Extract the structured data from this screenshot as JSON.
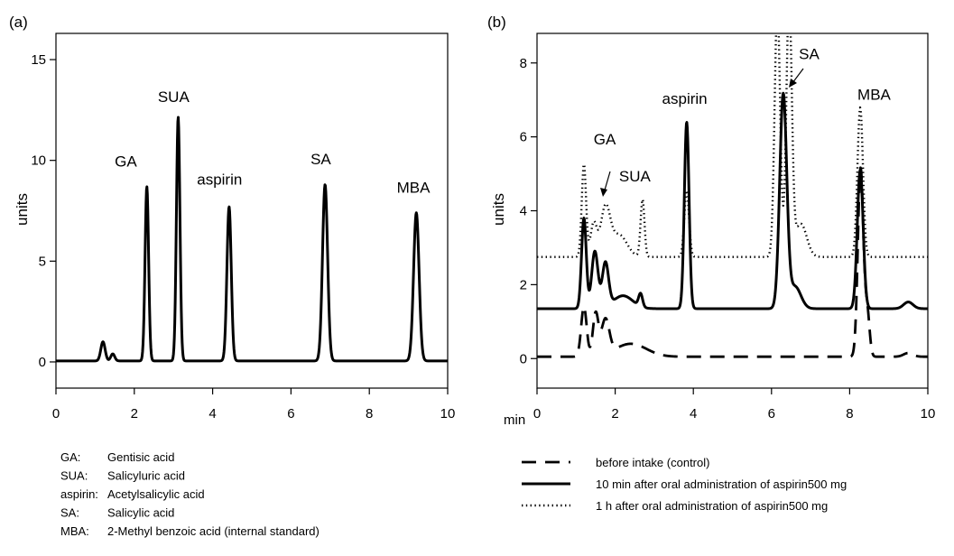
{
  "chart_data": [
    {
      "panel": "(a)",
      "type": "line",
      "ylabel": "units",
      "xlim": [
        0,
        10
      ],
      "ylim": [
        -1.3,
        16.3
      ],
      "xticks": [
        0,
        2,
        4,
        6,
        8,
        10
      ],
      "yticks": [
        0,
        5,
        10,
        15
      ],
      "peak_labels": [
        {
          "text": "GA",
          "x": 1.5,
          "y": 9.7
        },
        {
          "text": "SUA",
          "x": 2.6,
          "y": 12.9
        },
        {
          "text": "aspirin",
          "x": 3.6,
          "y": 8.8
        },
        {
          "text": "SA",
          "x": 6.5,
          "y": 9.8
        },
        {
          "text": "MBA",
          "x": 8.7,
          "y": 8.4
        }
      ],
      "series": [
        {
          "style": "solid",
          "baseline": 0.05,
          "peaks": [
            {
              "x": 1.2,
              "h": 0.95,
              "w": 0.055
            },
            {
              "x": 1.45,
              "h": 0.35,
              "w": 0.05
            },
            {
              "x": 2.32,
              "h": 8.65,
              "w": 0.045
            },
            {
              "x": 3.12,
              "h": 12.1,
              "w": 0.045
            },
            {
              "x": 4.42,
              "h": 7.65,
              "w": 0.055
            },
            {
              "x": 6.87,
              "h": 8.75,
              "w": 0.065
            },
            {
              "x": 9.2,
              "h": 7.35,
              "w": 0.07
            }
          ]
        }
      ],
      "legend": [
        {
          "abbr": "GA:",
          "name": "Gentisic acid"
        },
        {
          "abbr": "SUA:",
          "name": "Salicyluric acid"
        },
        {
          "abbr": "aspirin:",
          "name": "Acetylsalicylic acid"
        },
        {
          "abbr": "SA:",
          "name": "Salicylic acid"
        },
        {
          "abbr": "MBA:",
          "name": "2-Methyl benzoic acid (internal standard)"
        }
      ]
    },
    {
      "panel": "(b)",
      "type": "line",
      "ylabel": "units",
      "xunit": "min",
      "xlim": [
        0,
        10
      ],
      "ylim": [
        -0.8,
        8.8
      ],
      "xticks": [
        0,
        2,
        4,
        6,
        8,
        10
      ],
      "yticks": [
        0,
        2,
        4,
        6,
        8
      ],
      "peak_labels": [
        {
          "text": "GA",
          "x": 1.45,
          "y": 5.8
        },
        {
          "text": "SUA",
          "x": 2.1,
          "y": 4.8
        },
        {
          "text": "aspirin",
          "x": 3.2,
          "y": 6.9
        },
        {
          "text": "SA",
          "x": 6.7,
          "y": 8.1
        },
        {
          "text": "MBA",
          "x": 8.2,
          "y": 7.0
        }
      ],
      "series": [
        {
          "name": "before intake (control)",
          "style": "dashed",
          "baseline": 0.05,
          "peaks": [
            {
              "x": 1.2,
              "h": 1.35,
              "w": 0.07
            },
            {
              "x": 1.5,
              "h": 1.15,
              "w": 0.07
            },
            {
              "x": 1.75,
              "h": 0.95,
              "w": 0.1
            },
            {
              "x": 2.4,
              "h": 0.35,
              "w": 0.4
            },
            {
              "x": 8.28,
              "h": 5.1,
              "w": 0.07
            },
            {
              "x": 8.45,
              "h": 1.2,
              "w": 0.06
            },
            {
              "x": 9.5,
              "h": 0.1,
              "w": 0.12
            }
          ]
        },
        {
          "name": "10 min after oral administration of aspirin500 mg",
          "style": "solid",
          "baseline": 1.35,
          "peaks": [
            {
              "x": 1.2,
              "h": 2.45,
              "w": 0.06
            },
            {
              "x": 1.48,
              "h": 1.55,
              "w": 0.08
            },
            {
              "x": 1.75,
              "h": 1.2,
              "w": 0.08
            },
            {
              "x": 2.2,
              "h": 0.35,
              "w": 0.25
            },
            {
              "x": 2.65,
              "h": 0.35,
              "w": 0.05
            },
            {
              "x": 3.83,
              "h": 5.05,
              "w": 0.06
            },
            {
              "x": 6.3,
              "h": 5.75,
              "w": 0.09
            },
            {
              "x": 6.6,
              "h": 0.6,
              "w": 0.15
            },
            {
              "x": 8.27,
              "h": 3.75,
              "w": 0.075
            },
            {
              "x": 9.5,
              "h": 0.18,
              "w": 0.12
            }
          ]
        },
        {
          "name": "1 h after oral administration of aspirin500 mg",
          "style": "dotted",
          "baseline": 2.75,
          "peaks": [
            {
              "x": 1.2,
              "h": 2.5,
              "w": 0.055
            },
            {
              "x": 1.45,
              "h": 0.9,
              "w": 0.08
            },
            {
              "x": 1.75,
              "h": 1.3,
              "w": 0.12
            },
            {
              "x": 2.1,
              "h": 0.6,
              "w": 0.2
            },
            {
              "x": 2.7,
              "h": 1.55,
              "w": 0.05
            },
            {
              "x": 3.83,
              "h": 1.8,
              "w": 0.06
            },
            {
              "x": 6.15,
              "h": 6.8,
              "w": 0.07
            },
            {
              "x": 6.45,
              "h": 6.9,
              "w": 0.07
            },
            {
              "x": 6.75,
              "h": 0.9,
              "w": 0.15
            },
            {
              "x": 8.27,
              "h": 4.05,
              "w": 0.07
            }
          ]
        }
      ]
    }
  ]
}
